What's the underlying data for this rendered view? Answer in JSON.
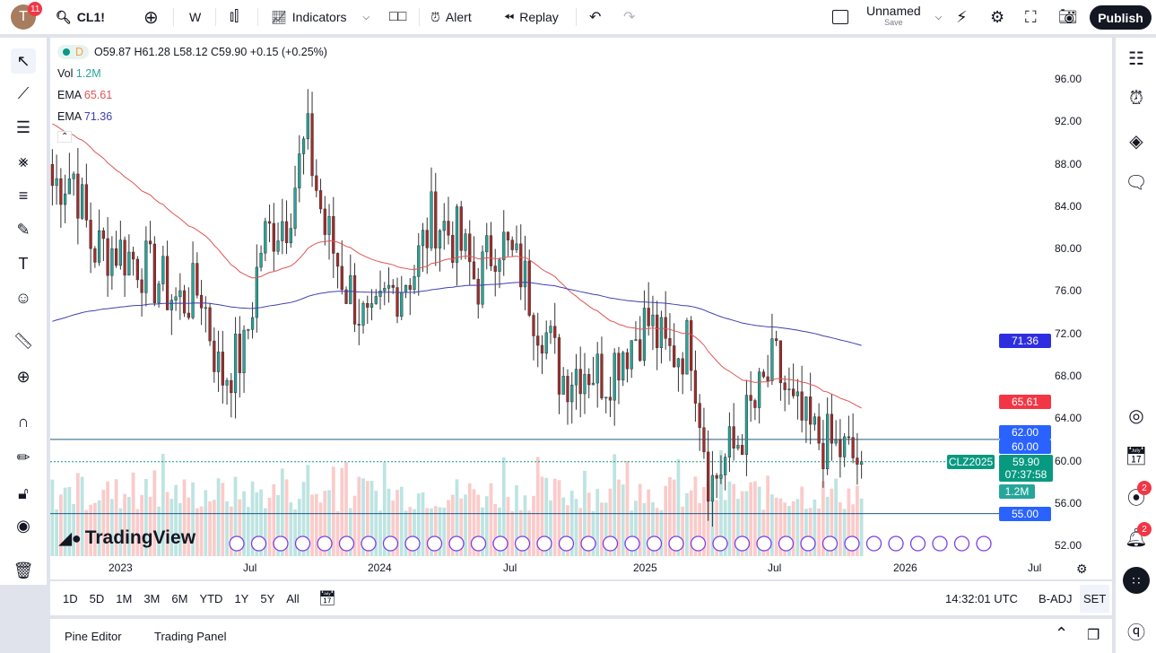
{
  "header": {
    "avatar_letter": "T",
    "notif_count": "11",
    "symbol": "CL1!",
    "interval": "W",
    "indicators": "Indicators",
    "alert": "Alert",
    "replay": "Replay",
    "layout_name": "Unnamed",
    "save": "Save",
    "publish": "Publish"
  },
  "legend": {
    "interval": "D",
    "ohlc": "O59.87 H61.28 L58.12 C59.90 +0.15 (+0.25%)",
    "vol_label": "Vol",
    "vol_value": "1.2M",
    "ema1_label": "EMA",
    "ema1_value": "65.61",
    "ema2_label": "EMA",
    "ema2_value": "71.36"
  },
  "price_axis": [
    "96.00",
    "92.00",
    "88.00",
    "84.00",
    "80.00",
    "76.00",
    "72.00",
    "68.00",
    "64.00",
    "60.00",
    "56.00",
    "52.00"
  ],
  "price_tags": {
    "ema2": "71.36",
    "ema1": "65.61",
    "line1": "62.00",
    "line2": "60.00",
    "symbol_tag": "CLZ2025",
    "last": "59.90",
    "countdown": "07:37:58",
    "volume": "1.2M",
    "line3": "55.00"
  },
  "time_axis": [
    "2023",
    "Jul",
    "2024",
    "Jul",
    "2025",
    "Jul",
    "2026",
    "Jul"
  ],
  "ranges": [
    "1D",
    "5D",
    "1M",
    "3M",
    "6M",
    "YTD",
    "1Y",
    "5Y",
    "All"
  ],
  "clock": "14:32:01 UTC",
  "badj": "B-ADJ",
  "set": "SET",
  "panel": {
    "pine": "Pine Editor",
    "trading": "Trading Panel"
  },
  "right_badges": {
    "feed": "2",
    "alerts": "2"
  },
  "logo": "TradingView",
  "colors": {
    "up": "#26a69a",
    "down": "#ef5350",
    "ema_fast": "#e05555",
    "ema_slow": "#3f3fb0",
    "line": "#2962ff"
  },
  "chart_data": {
    "type": "candlestick",
    "interval": "weekly",
    "ylim": [
      52,
      96
    ],
    "monthly_close": {
      "start": "2022-09",
      "values": [
        86,
        87,
        80,
        80,
        79,
        77,
        75,
        76,
        68,
        70,
        81,
        83,
        90,
        81,
        76,
        72,
        76,
        78,
        83,
        81,
        77,
        81,
        78,
        73,
        68,
        69,
        68,
        71,
        73,
        70,
        71,
        58,
        61,
        65,
        69,
        64,
        62,
        61,
        59.9
      ]
    },
    "horizontal_lines": [
      62,
      59.9,
      55
    ]
  }
}
